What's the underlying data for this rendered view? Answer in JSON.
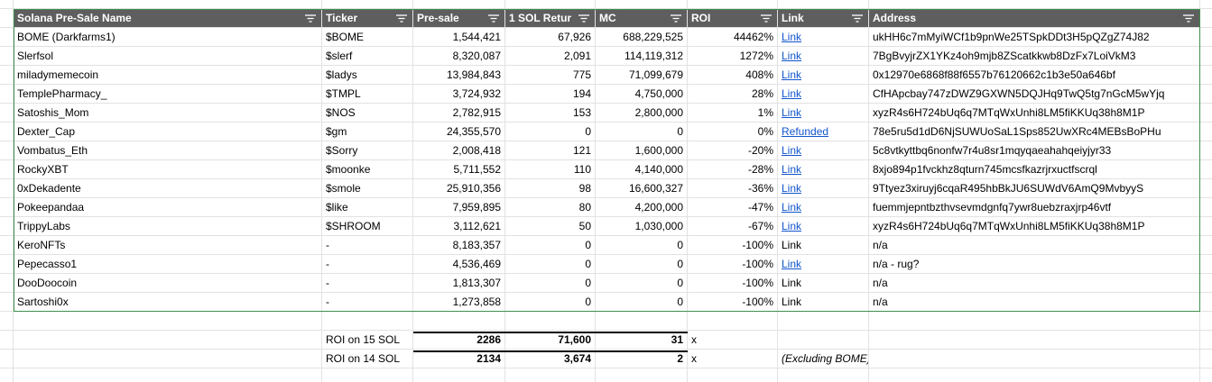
{
  "table": {
    "header": [
      "Solana Pre-Sale Name",
      "Ticker",
      "Pre-sale",
      "1 SOL Retur",
      "MC",
      "ROI",
      "Link",
      "Address"
    ],
    "rows": [
      [
        "BOME (Darkfarms1)",
        "$BOME",
        "1,544,421",
        "67,926",
        "688,229,525",
        "44462%",
        "Link",
        "ukHH6c7mMyiWCf1b9pnWe25TSpkDDt3H5pQZgZ74J82"
      ],
      [
        "Slerfsol",
        "$slerf",
        "8,320,087",
        "2,091",
        "114,119,312",
        "1272%",
        "Link",
        "7BgBvyjrZX1YKz4oh9mjb8ZScatkkwb8DzFx7LoiVkM3"
      ],
      [
        "miladymemecoin",
        "$ladys",
        "13,984,843",
        "775",
        "71,099,679",
        "408%",
        "Link",
        "0x12970e6868f88f6557b76120662c1b3e50a646bf"
      ],
      [
        "TemplePharmacy_",
        "$TMPL",
        "3,724,932",
        "194",
        "4,750,000",
        "28%",
        "Link",
        "CfHApcbay747zDWZ9GXWN5DQJHq9TwQ5tg7nGcM5wYjq"
      ],
      [
        "Satoshis_Mom",
        "$NOS",
        "2,782,915",
        "153",
        "2,800,000",
        "1%",
        "Link",
        "xyzR4s6H724bUq6q7MTqWxUnhi8LM5fiKKUq38h8M1P"
      ],
      [
        "Dexter_Cap",
        "$gm",
        "24,355,570",
        "0",
        "0",
        "0%",
        "Refunded",
        "78e5ru5d1dD6NjSUWUoSaL1Sps852UwXRc4MEBsBoPHu"
      ],
      [
        "Vombatus_Eth",
        "$Sorry",
        "2,008,418",
        "121",
        "1,600,000",
        "-20%",
        "Link",
        "5c8vtkyttbq6nonfw7r4u8sr1mqyqaeahahqeiyjyr33"
      ],
      [
        "RockyXBT",
        "$moonke",
        "5,711,552",
        "110",
        "4,140,000",
        "-28%",
        "Link",
        "8xjo894p1fvckhz8qturn745mcsfkazrjrxuctfscrql"
      ],
      [
        "0xDekadente",
        "$smole",
        "25,910,356",
        "98",
        "16,600,327",
        "-36%",
        "Link",
        "9Ttyez3xiruyj6cqaR495hbBkJU6SUWdV6AmQ9MvbyyS"
      ],
      [
        "Pokeepandaa",
        "$like",
        "7,959,895",
        "80",
        "4,200,000",
        "-47%",
        "Link",
        "fuemmjepntbzthvsevmdgnfq7ywr8uebzraxjrp46vtf"
      ],
      [
        "TrippyLabs",
        "$SHROOM",
        "3,112,621",
        "50",
        "1,030,000",
        "-67%",
        "Link",
        "xyzR4s6H724bUq6q7MTqWxUnhi8LM5fiKKUq38h8M1P"
      ],
      [
        "KeroNFTs",
        "-",
        "8,183,357",
        "0",
        "0",
        "-100%",
        "Link",
        "n/a"
      ],
      [
        "Pepecasso1",
        "-",
        "4,536,469",
        "0",
        "0",
        "-100%",
        "Link",
        "n/a - rug?"
      ],
      [
        "DooDoocoin",
        "-",
        "1,813,307",
        "0",
        "0",
        "-100%",
        "Link",
        "n/a"
      ],
      [
        "Sartoshi0x",
        "-",
        "1,273,858",
        "0",
        "0",
        "-100%",
        "Link",
        "n/a"
      ]
    ],
    "linked": [
      true,
      true,
      true,
      true,
      true,
      true,
      true,
      true,
      true,
      true,
      true,
      false,
      true,
      false,
      false
    ]
  },
  "footer": {
    "rows": [
      {
        "label": "ROI on 15 SOL",
        "values": [
          "2286",
          "71,600",
          "31"
        ],
        "unit": "x"
      },
      {
        "label": "ROI on 14 SOL",
        "values": [
          "2134",
          "3,674",
          "2"
        ],
        "unit": "x",
        "note": "(Excluding BOME)"
      }
    ]
  }
}
